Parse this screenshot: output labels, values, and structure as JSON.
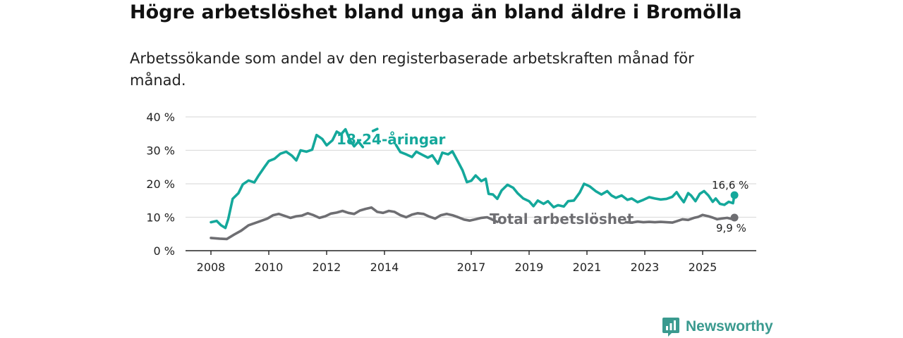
{
  "header": {
    "title": "Högre arbetslöshet bland unga än bland äldre i Bromölla",
    "subtitle": "Arbetssökande som andel av den registerbaserade arbetskraften månad för månad."
  },
  "brand": {
    "name": "Newsworthy",
    "icon": "newsworthy-logo-icon",
    "color": "#3a9a8f"
  },
  "colors": {
    "youth": "#14a89b",
    "total": "#6e6e72",
    "grid": "#dddddd",
    "axis": "#222222"
  },
  "chart_data": {
    "type": "line",
    "title": "Högre arbetslöshet bland unga än bland äldre i Bromölla",
    "xlabel": "",
    "ylabel": "",
    "xlim": [
      2008,
      2026.5
    ],
    "ylim": [
      0,
      40
    ],
    "y_ticks": [
      0,
      10,
      20,
      30,
      40
    ],
    "y_tick_labels": [
      "0 %",
      "10 %",
      "20 %",
      "30 %",
      "40 %"
    ],
    "x_ticks": [
      2008,
      2010,
      2012,
      2014,
      2017,
      2019,
      2021,
      2023,
      2025
    ],
    "x_tick_labels": [
      "2008",
      "2010",
      "2012",
      "2014",
      "2017",
      "2019",
      "2021",
      "2023",
      "2025"
    ],
    "grid": "horizontal",
    "series": [
      {
        "name": "18-24-åringar",
        "color": "#14a89b",
        "end_label": "16,6 %",
        "end_value": 16.6,
        "points": [
          [
            2008.0,
            8.5
          ],
          [
            2008.2,
            8.9
          ],
          [
            2008.35,
            7.6
          ],
          [
            2008.5,
            6.8
          ],
          [
            2008.6,
            9.5
          ],
          [
            2008.75,
            15.5
          ],
          [
            2008.95,
            17.2
          ],
          [
            2009.1,
            19.8
          ],
          [
            2009.3,
            21.0
          ],
          [
            2009.5,
            20.4
          ],
          [
            2009.65,
            22.5
          ],
          [
            2009.85,
            25.0
          ],
          [
            2010.0,
            26.8
          ],
          [
            2010.2,
            27.5
          ],
          [
            2010.4,
            29.0
          ],
          [
            2010.6,
            29.6
          ],
          [
            2010.8,
            28.4
          ],
          [
            2010.95,
            27.0
          ],
          [
            2011.1,
            30.0
          ],
          [
            2011.3,
            29.6
          ],
          [
            2011.5,
            30.2
          ],
          [
            2011.65,
            34.6
          ],
          [
            2011.85,
            33.4
          ],
          [
            2012.0,
            31.5
          ],
          [
            2012.2,
            33.0
          ],
          [
            2012.35,
            35.6
          ],
          [
            2012.5,
            34.8
          ],
          [
            2012.65,
            36.3
          ],
          [
            2012.8,
            33.2
          ],
          [
            2012.95,
            31.2
          ],
          [
            2013.1,
            32.6
          ],
          [
            2013.25,
            31.0
          ],
          null,
          [
            2013.6,
            35.8
          ],
          [
            2013.75,
            36.4
          ],
          null,
          [
            2014.4,
            31.6
          ],
          [
            2014.55,
            29.5
          ],
          [
            2014.75,
            28.8
          ],
          [
            2014.95,
            28.0
          ],
          [
            2015.1,
            29.6
          ],
          [
            2015.3,
            28.7
          ],
          [
            2015.5,
            27.8
          ],
          [
            2015.65,
            28.5
          ],
          [
            2015.85,
            26.0
          ],
          [
            2016.0,
            29.3
          ],
          [
            2016.2,
            28.8
          ],
          [
            2016.35,
            29.7
          ],
          [
            2016.55,
            26.5
          ],
          [
            2016.7,
            24.0
          ],
          [
            2016.85,
            20.5
          ],
          [
            2017.0,
            20.9
          ],
          [
            2017.15,
            22.5
          ],
          [
            2017.35,
            20.8
          ],
          [
            2017.5,
            21.5
          ],
          [
            2017.6,
            17.0
          ],
          [
            2017.75,
            16.8
          ],
          [
            2017.9,
            15.5
          ],
          [
            2018.05,
            18.0
          ],
          [
            2018.25,
            19.7
          ],
          [
            2018.45,
            18.8
          ],
          [
            2018.6,
            17.2
          ],
          [
            2018.8,
            15.6
          ],
          [
            2019.0,
            14.8
          ],
          [
            2019.15,
            13.3
          ],
          [
            2019.3,
            15.0
          ],
          [
            2019.5,
            14.0
          ],
          [
            2019.65,
            14.8
          ],
          [
            2019.85,
            13.0
          ],
          [
            2020.0,
            13.6
          ],
          [
            2020.2,
            13.2
          ],
          [
            2020.35,
            14.8
          ],
          [
            2020.55,
            15.0
          ],
          [
            2020.75,
            17.4
          ],
          [
            2020.9,
            20.0
          ],
          [
            2021.1,
            19.2
          ],
          [
            2021.3,
            17.8
          ],
          [
            2021.5,
            16.8
          ],
          [
            2021.7,
            17.8
          ],
          [
            2021.85,
            16.5
          ],
          [
            2022.0,
            15.8
          ],
          [
            2022.2,
            16.5
          ],
          [
            2022.4,
            15.2
          ],
          [
            2022.55,
            15.6
          ],
          [
            2022.75,
            14.5
          ],
          [
            2022.95,
            15.2
          ],
          [
            2023.15,
            16.0
          ],
          [
            2023.35,
            15.6
          ],
          [
            2023.55,
            15.3
          ],
          [
            2023.75,
            15.5
          ],
          [
            2023.95,
            16.1
          ],
          [
            2024.1,
            17.5
          ],
          [
            2024.2,
            16.2
          ],
          [
            2024.35,
            14.5
          ],
          [
            2024.5,
            17.2
          ],
          [
            2024.6,
            16.5
          ],
          [
            2024.75,
            14.8
          ],
          [
            2024.9,
            17.0
          ],
          [
            2025.05,
            17.8
          ],
          [
            2025.2,
            16.5
          ],
          [
            2025.35,
            14.6
          ],
          [
            2025.45,
            15.6
          ],
          [
            2025.6,
            14.0
          ],
          [
            2025.75,
            13.7
          ],
          [
            2025.9,
            14.6
          ],
          [
            2026.05,
            14.2
          ],
          [
            2026.1,
            16.6
          ]
        ]
      },
      {
        "name": "Total arbetslöshet",
        "color": "#6e6e72",
        "end_label": "9,9 %",
        "end_value": 9.9,
        "points": [
          [
            2008.0,
            3.8
          ],
          [
            2008.3,
            3.6
          ],
          [
            2008.55,
            3.5
          ],
          [
            2008.8,
            4.8
          ],
          [
            2009.05,
            6.0
          ],
          [
            2009.3,
            7.6
          ],
          [
            2009.5,
            8.2
          ],
          [
            2009.7,
            8.8
          ],
          [
            2009.95,
            9.6
          ],
          [
            2010.15,
            10.6
          ],
          [
            2010.35,
            11.0
          ],
          [
            2010.55,
            10.4
          ],
          [
            2010.75,
            9.8
          ],
          [
            2010.95,
            10.3
          ],
          [
            2011.15,
            10.5
          ],
          [
            2011.35,
            11.2
          ],
          [
            2011.55,
            10.6
          ],
          [
            2011.75,
            9.8
          ],
          [
            2011.95,
            10.3
          ],
          [
            2012.15,
            11.1
          ],
          [
            2012.35,
            11.4
          ],
          [
            2012.55,
            11.9
          ],
          [
            2012.75,
            11.3
          ],
          [
            2012.95,
            11.0
          ],
          [
            2013.15,
            12.0
          ],
          [
            2013.35,
            12.5
          ],
          [
            2013.55,
            12.9
          ],
          [
            2013.75,
            11.6
          ],
          [
            2013.95,
            11.3
          ],
          [
            2014.15,
            11.9
          ],
          [
            2014.35,
            11.6
          ],
          [
            2014.55,
            10.6
          ],
          [
            2014.75,
            10.0
          ],
          [
            2014.95,
            10.8
          ],
          [
            2015.15,
            11.2
          ],
          [
            2015.35,
            11.0
          ],
          [
            2015.55,
            10.2
          ],
          [
            2015.75,
            9.6
          ],
          [
            2015.95,
            10.6
          ],
          [
            2016.15,
            11.0
          ],
          [
            2016.35,
            10.6
          ],
          [
            2016.55,
            10.0
          ],
          [
            2016.75,
            9.3
          ],
          [
            2016.95,
            9.0
          ],
          [
            2017.15,
            9.4
          ],
          [
            2017.35,
            9.8
          ],
          [
            2017.55,
            10.0
          ],
          [
            2017.75,
            9.2
          ],
          [
            2017.9,
            8.6
          ],
          null,
          [
            2022.35,
            8.5
          ],
          [
            2022.55,
            8.4
          ],
          [
            2022.75,
            8.7
          ],
          [
            2022.95,
            8.5
          ],
          [
            2023.15,
            8.6
          ],
          [
            2023.35,
            8.5
          ],
          [
            2023.55,
            8.6
          ],
          [
            2023.75,
            8.5
          ],
          [
            2023.95,
            8.4
          ],
          [
            2024.1,
            8.8
          ],
          [
            2024.3,
            9.4
          ],
          [
            2024.5,
            9.2
          ],
          [
            2024.7,
            9.8
          ],
          [
            2024.85,
            10.1
          ],
          [
            2025.0,
            10.7
          ],
          [
            2025.2,
            10.3
          ],
          [
            2025.35,
            9.9
          ],
          [
            2025.5,
            9.4
          ],
          [
            2025.65,
            9.6
          ],
          [
            2025.85,
            9.8
          ],
          [
            2026.0,
            9.5
          ],
          [
            2026.1,
            9.9
          ]
        ]
      }
    ]
  }
}
